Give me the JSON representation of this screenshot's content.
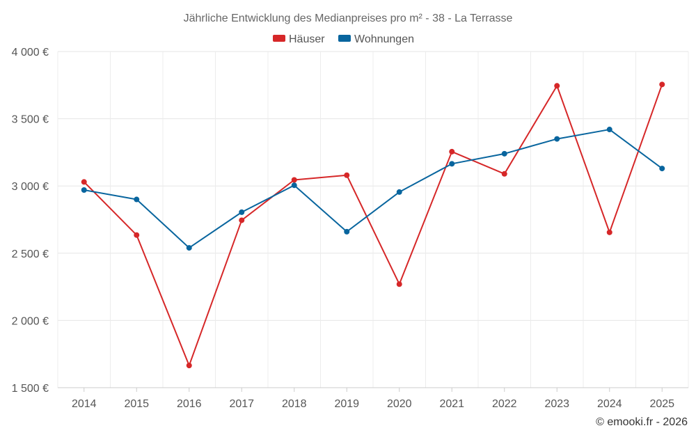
{
  "chart_data": {
    "type": "line",
    "title": "Jährliche Entwicklung des Medianpreises pro m² - 38 - La Terrasse",
    "categories": [
      "2014",
      "2015",
      "2016",
      "2017",
      "2018",
      "2019",
      "2020",
      "2021",
      "2022",
      "2023",
      "2024",
      "2025"
    ],
    "series": [
      {
        "name": "Häuser",
        "color": "#d62728",
        "values": [
          3030,
          2635,
          1665,
          2745,
          3045,
          3080,
          2270,
          3255,
          3090,
          3745,
          2655,
          3755
        ]
      },
      {
        "name": "Wohnungen",
        "color": "#08659e",
        "values": [
          2970,
          2900,
          2540,
          2805,
          3005,
          2660,
          2955,
          3165,
          3240,
          3350,
          3420,
          3130
        ]
      }
    ],
    "ylim": [
      1500,
      4000
    ],
    "yticks": [
      1500,
      2000,
      2500,
      3000,
      3500,
      4000
    ],
    "ytick_labels": [
      "1 500 €",
      "2 000 €",
      "2 500 €",
      "3 000 €",
      "3 500 €",
      "4 000 €"
    ],
    "grid": true,
    "legend": "top-center"
  },
  "copyright": "© emooki.fr - 2026"
}
